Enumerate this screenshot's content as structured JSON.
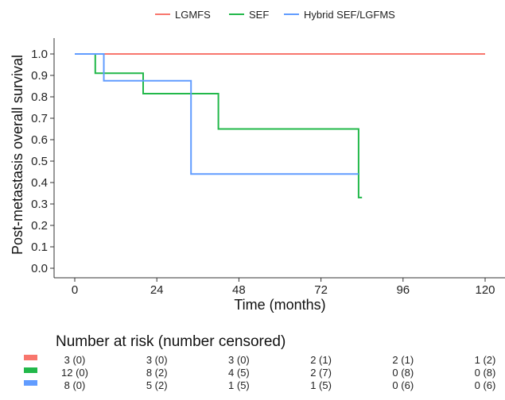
{
  "chart_data": {
    "type": "line",
    "subtype": "kaplan-meier",
    "xlabel": "Time (months)",
    "ylabel": "Post-metastasis overall survival",
    "xlim": [
      0,
      120
    ],
    "ylim": [
      0,
      1.0
    ],
    "x_ticks": [
      "0",
      "24",
      "48",
      "72",
      "96",
      "120"
    ],
    "x_tick_values": [
      0,
      24,
      48,
      72,
      96,
      120
    ],
    "y_ticks": [
      "0.0",
      "0.1",
      "0.2",
      "0.3",
      "0.4",
      "0.5",
      "0.6",
      "0.7",
      "0.8",
      "0.9",
      "1.0"
    ],
    "y_tick_values": [
      0,
      0.1,
      0.2,
      0.3,
      0.4,
      0.5,
      0.6,
      0.7,
      0.8,
      0.9,
      1.0
    ],
    "grid": false,
    "legend_position": "top",
    "series": [
      {
        "name": "LGMFS",
        "color": "#F8766D",
        "steps": [
          [
            0,
            1.0
          ],
          [
            120,
            1.0
          ]
        ]
      },
      {
        "name": "SEF",
        "color": "#22B84A",
        "steps": [
          [
            0,
            1.0
          ],
          [
            6,
            0.91
          ],
          [
            20,
            0.815
          ],
          [
            42,
            0.65
          ],
          [
            83,
            0.33
          ],
          [
            84,
            0.33
          ]
        ]
      },
      {
        "name": "Hybrid SEF/LGFMS",
        "color": "#619CFF",
        "steps": [
          [
            0,
            1.0
          ],
          [
            8.5,
            0.875
          ],
          [
            34,
            0.44
          ],
          [
            83,
            0.44
          ]
        ]
      }
    ],
    "risk_table": {
      "title": "Number at risk (number censored)",
      "time_points": [
        0,
        24,
        48,
        72,
        96,
        120
      ],
      "rows": [
        {
          "series": "LGMFS",
          "color": "#F8766D",
          "values": [
            "3 (0)",
            "3 (0)",
            "3 (0)",
            "2 (1)",
            "2 (1)",
            "1 (2)"
          ]
        },
        {
          "series": "SEF",
          "color": "#22B84A",
          "values": [
            "12 (0)",
            "8 (2)",
            "4 (5)",
            "2 (7)",
            "0 (8)",
            "0 (8)"
          ]
        },
        {
          "series": "Hybrid SEF/LGFMS",
          "color": "#619CFF",
          "values": [
            "8 (0)",
            "5 (2)",
            "1 (5)",
            "1 (5)",
            "0 (6)",
            "0 (6)"
          ]
        }
      ]
    }
  }
}
